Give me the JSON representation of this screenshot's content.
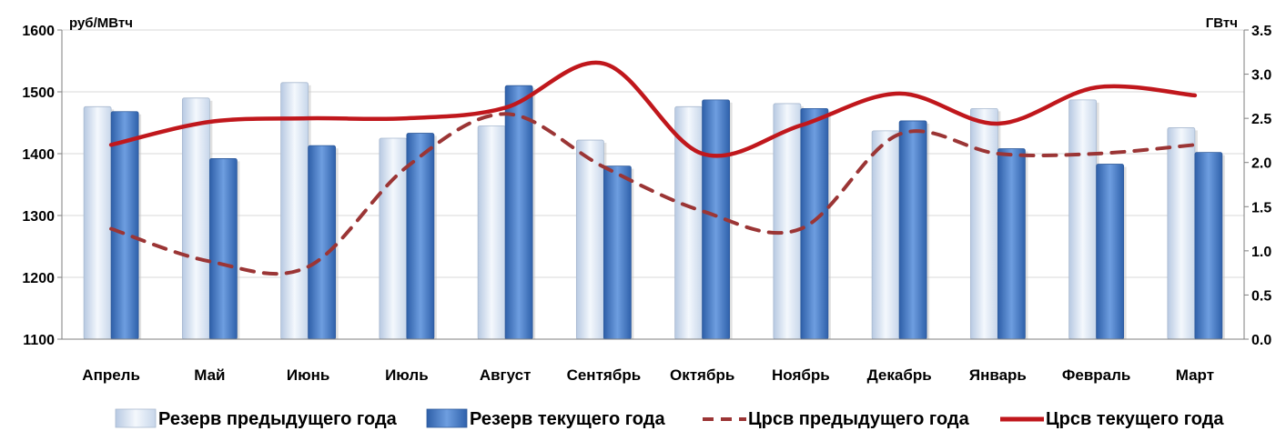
{
  "chart_data": {
    "type": "bar",
    "categories": [
      "Апрель",
      "Май",
      "Июнь",
      "Июль",
      "Август",
      "Сентябрь",
      "Октябрь",
      "Ноябрь",
      "Декабрь",
      "Январь",
      "Февраль",
      "Март"
    ],
    "ylabel": "руб/МВтч",
    "y2label": "ГВтч",
    "ylim": [
      1100,
      1600
    ],
    "y2lim": [
      0.0,
      3.5
    ],
    "yticks": [
      "1100",
      "1200",
      "1300",
      "1400",
      "1500",
      "1600"
    ],
    "y2ticks": [
      "0.0",
      "0.5",
      "1.0",
      "1.5",
      "2.0",
      "2.5",
      "3.0",
      "3.5"
    ],
    "grid": true,
    "legend_position": "bottom",
    "series": [
      {
        "name": "Резерв предыдущего года",
        "kind": "bar",
        "axis": "left",
        "color": "#dce7f5",
        "values": [
          1476,
          1490,
          1515,
          1425,
          1445,
          1422,
          1476,
          1481,
          1437,
          1473,
          1487,
          1442
        ]
      },
      {
        "name": "Резерв текущего года",
        "kind": "bar",
        "axis": "left",
        "color": "#4a7fcc",
        "values": [
          1468,
          1392,
          1413,
          1433,
          1510,
          1380,
          1487,
          1473,
          1453,
          1408,
          1383,
          1402
        ]
      },
      {
        "name": "Црсв предыдущего года",
        "kind": "line",
        "style": "dashed",
        "axis": "right",
        "color": "#9b3535",
        "values": [
          1.25,
          0.88,
          0.82,
          1.95,
          2.55,
          1.95,
          1.45,
          1.25,
          2.32,
          2.1,
          2.1,
          2.2
        ]
      },
      {
        "name": "Црсв текущего года",
        "kind": "line",
        "style": "solid",
        "axis": "right",
        "color": "#c0171c",
        "values": [
          2.2,
          2.46,
          2.5,
          2.5,
          2.62,
          3.12,
          2.1,
          2.42,
          2.78,
          2.44,
          2.85,
          2.76
        ]
      }
    ]
  }
}
